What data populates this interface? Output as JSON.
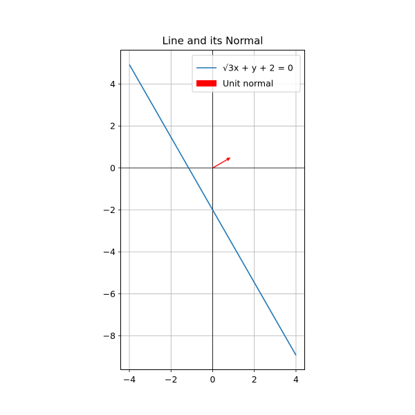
{
  "chart_data": {
    "type": "line",
    "title": "Line and its Normal",
    "xlabel": "",
    "ylabel": "",
    "xlim": [
      -4.4,
      4.4
    ],
    "ylim": [
      -9.6,
      5.6
    ],
    "xticks": [
      -4,
      -2,
      0,
      2,
      4
    ],
    "xtick_labels": [
      "−4",
      "−2",
      "0",
      "2",
      "4"
    ],
    "yticks": [
      4,
      2,
      0,
      -2,
      -4,
      -6,
      -8
    ],
    "ytick_labels": [
      "4",
      "2",
      "0",
      "−2",
      "−4",
      "−6",
      "−8"
    ],
    "grid": true,
    "aspect": "equal",
    "legend_position": "top-right",
    "series": [
      {
        "name": "√3x + y + 2 = 0",
        "kind": "line",
        "color": "#1f77b4",
        "x": [
          -4,
          4
        ],
        "y": [
          4.928,
          -8.928
        ]
      },
      {
        "name": "Unit normal",
        "kind": "arrow",
        "color": "#ff0000",
        "origin": [
          0,
          0
        ],
        "vector": [
          0.866,
          0.5
        ]
      }
    ]
  }
}
